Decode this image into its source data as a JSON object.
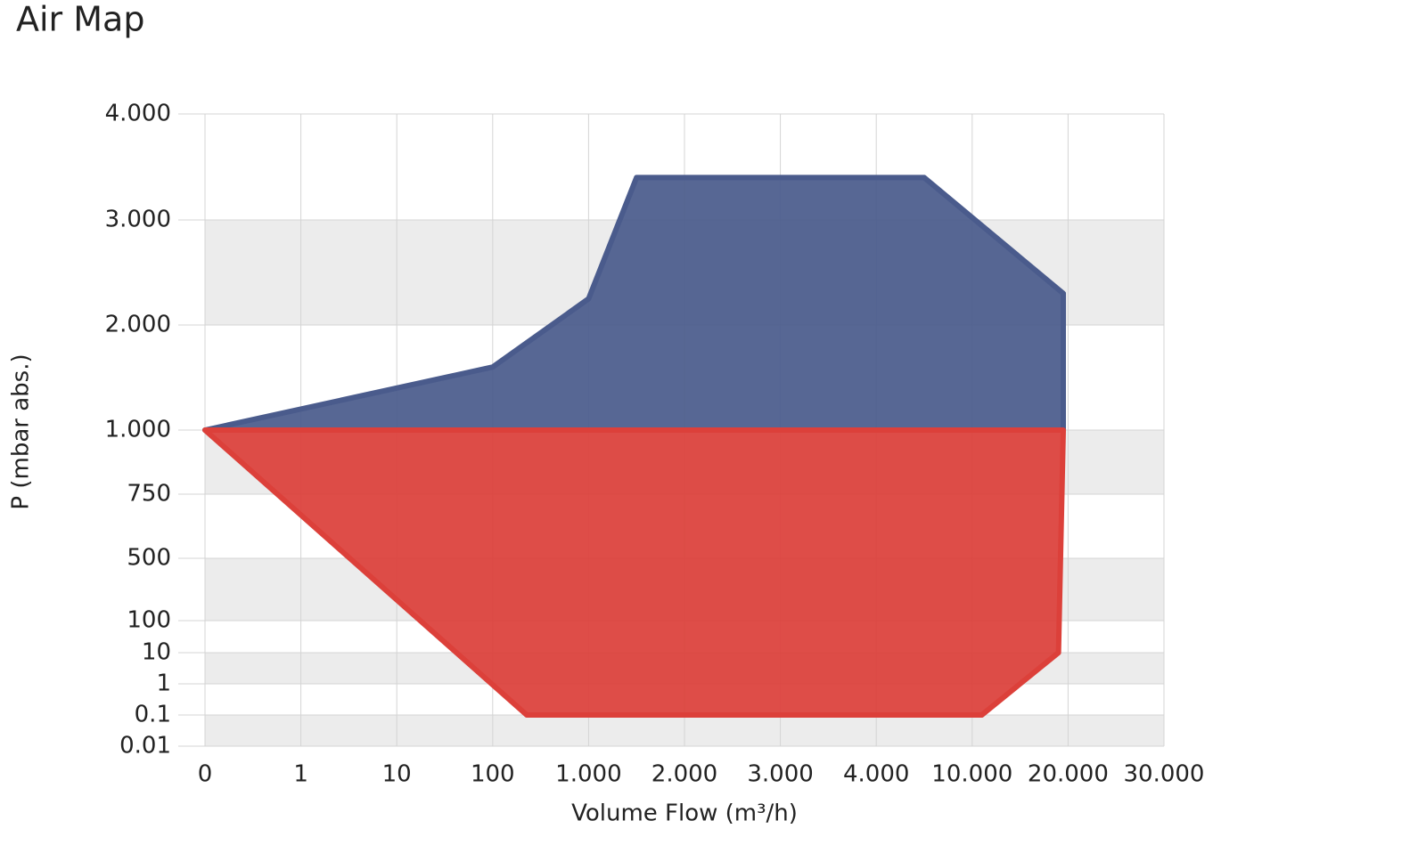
{
  "chart_data": {
    "type": "area",
    "title": "Air Map",
    "xlabel": "Volume Flow (m³/h)",
    "ylabel": "P (mbar abs.)",
    "xticks": [
      0,
      1,
      10,
      100,
      {
        "value": 1000,
        "label": "1.000"
      },
      {
        "value": 2000,
        "label": "2.000"
      },
      {
        "value": 3000,
        "label": "3.000"
      },
      {
        "value": 4000,
        "label": "4.000"
      },
      {
        "value": 10000,
        "label": "10.000"
      },
      {
        "value": 20000,
        "label": "20.000"
      },
      {
        "value": 30000,
        "label": "30.000"
      }
    ],
    "yticks": [
      0.01,
      0.1,
      1,
      10,
      100,
      500,
      750,
      {
        "value": 1000,
        "label": "1.000"
      },
      {
        "value": 2000,
        "label": "2.000"
      },
      {
        "value": 3000,
        "label": "3.000"
      },
      {
        "value": 4000,
        "label": "4.000"
      }
    ],
    "xlim": [
      0,
      30000
    ],
    "ylim": [
      0.01,
      4000
    ],
    "grid": true,
    "series": [
      {
        "color": "#4a5b8c",
        "x": [
          0,
          100,
          1000,
          1500,
          7000,
          19500,
          19500
        ],
        "values": [
          1000,
          1600,
          2250,
          3400,
          3400,
          2300,
          1000
        ]
      },
      {
        "color": "#dc403a",
        "x": [
          0,
          19500,
          19000,
          11000,
          420
        ],
        "values": [
          1000,
          1000,
          10,
          0.1,
          0.1
        ]
      }
    ]
  }
}
